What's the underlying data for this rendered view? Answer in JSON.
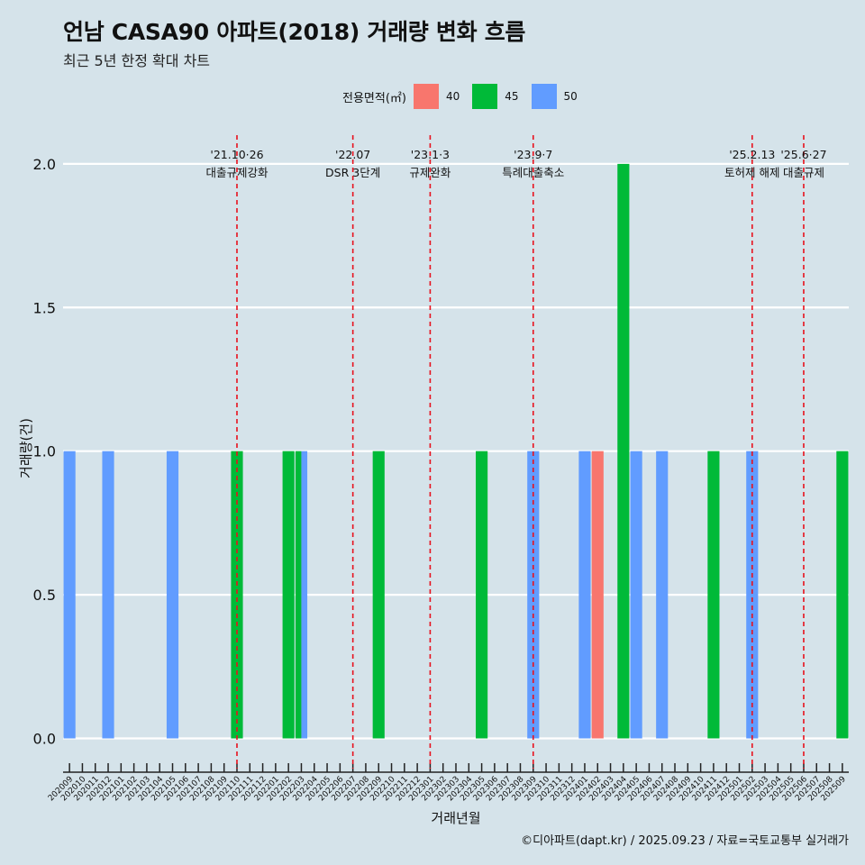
{
  "title": "언남 CASA90 아파트(2018) 거래량 변화 흐름",
  "subtitle": "최근 5년 한정 확대 차트",
  "caption": "©디아파트(dapt.kr) / 2025.09.23 / 자료=국토교통부 실거래가",
  "legend": {
    "title": "전용면적(㎡)",
    "items": [
      {
        "label": "40",
        "color": "#f8766d"
      },
      {
        "label": "45",
        "color": "#00ba38"
      },
      {
        "label": "50",
        "color": "#619cff"
      }
    ]
  },
  "chart_data": {
    "type": "bar",
    "xlabel": "거래년월",
    "ylabel": "거래량(건)",
    "ylim": [
      -0.08,
      2.1
    ],
    "yticks": [
      0.0,
      0.5,
      1.0,
      1.5,
      2.0
    ],
    "ytick_labels": [
      "0.0",
      "0.5",
      "1.0",
      "1.5",
      "2.0"
    ],
    "categories": [
      "202009",
      "202010",
      "202011",
      "202012",
      "202101",
      "202102",
      "202103",
      "202104",
      "202105",
      "202106",
      "202107",
      "202108",
      "202109",
      "202110",
      "202111",
      "202112",
      "202201",
      "202202",
      "202203",
      "202204",
      "202205",
      "202206",
      "202207",
      "202208",
      "202209",
      "202210",
      "202211",
      "202212",
      "202301",
      "202302",
      "202303",
      "202304",
      "202305",
      "202306",
      "202307",
      "202308",
      "202309",
      "202310",
      "202311",
      "202312",
      "202401",
      "202402",
      "202403",
      "202404",
      "202405",
      "202406",
      "202407",
      "202408",
      "202409",
      "202410",
      "202411",
      "202412",
      "202501",
      "202502",
      "202503",
      "202504",
      "202505",
      "202506",
      "202507",
      "202508",
      "202509"
    ],
    "series": [
      {
        "name": "40",
        "color": "#f8766d",
        "points": [
          {
            "x": "202402",
            "y": 1
          }
        ]
      },
      {
        "name": "45",
        "color": "#00ba38",
        "points": [
          {
            "x": "202110",
            "y": 1
          },
          {
            "x": "202202",
            "y": 1
          },
          {
            "x": "202203",
            "y": 1
          },
          {
            "x": "202209",
            "y": 1
          },
          {
            "x": "202305",
            "y": 1
          },
          {
            "x": "202404",
            "y": 2
          },
          {
            "x": "202411",
            "y": 1
          },
          {
            "x": "202509",
            "y": 1
          }
        ]
      },
      {
        "name": "50",
        "color": "#619cff",
        "points": [
          {
            "x": "202009",
            "y": 1
          },
          {
            "x": "202012",
            "y": 1
          },
          {
            "x": "202105",
            "y": 1
          },
          {
            "x": "202203",
            "y": 1
          },
          {
            "x": "202309",
            "y": 1
          },
          {
            "x": "202401",
            "y": 1
          },
          {
            "x": "202405",
            "y": 1
          },
          {
            "x": "202407",
            "y": 1
          },
          {
            "x": "202502",
            "y": 1
          }
        ]
      }
    ],
    "annotations": [
      {
        "x": "202110",
        "date": "'21.10·26",
        "text": "대출규제강화"
      },
      {
        "x": "202207",
        "date": "'22.07",
        "text": "DSR 3단계"
      },
      {
        "x": "202301",
        "date": "'23.1·3",
        "text": "규제완화"
      },
      {
        "x": "202309",
        "date": "'23.9·7",
        "text": "특례대출축소"
      },
      {
        "x": "202502",
        "date": "'25.2.13",
        "text": "토허제 해제"
      },
      {
        "x": "202506",
        "date": "'25.6·27",
        "text": "대출규제"
      }
    ],
    "grid": "horizontal",
    "legend_position": "top"
  }
}
